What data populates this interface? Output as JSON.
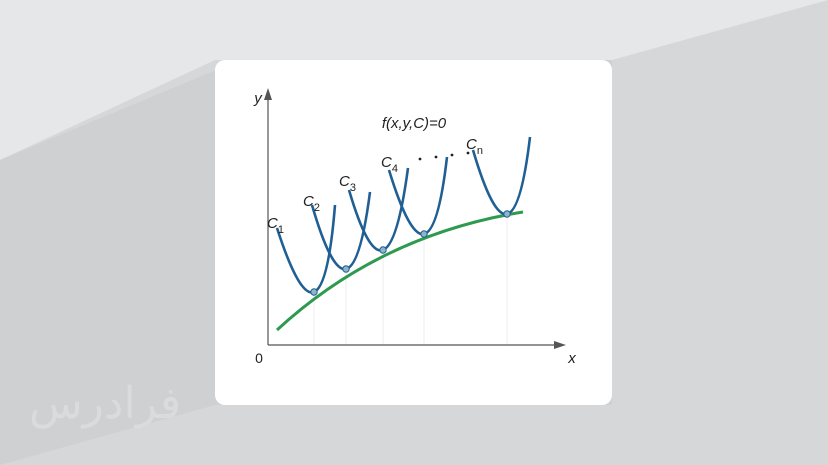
{
  "axes": {
    "x_label": "x",
    "y_label": "y",
    "origin": "0"
  },
  "equation": "f(x,y,C)=0",
  "curves": [
    {
      "label": "C",
      "subscript": "1"
    },
    {
      "label": "C",
      "subscript": "2"
    },
    {
      "label": "C",
      "subscript": "3"
    },
    {
      "label": "C",
      "subscript": "4"
    },
    {
      "label": "C",
      "subscript": "n"
    }
  ],
  "watermark": "فرادرس"
}
